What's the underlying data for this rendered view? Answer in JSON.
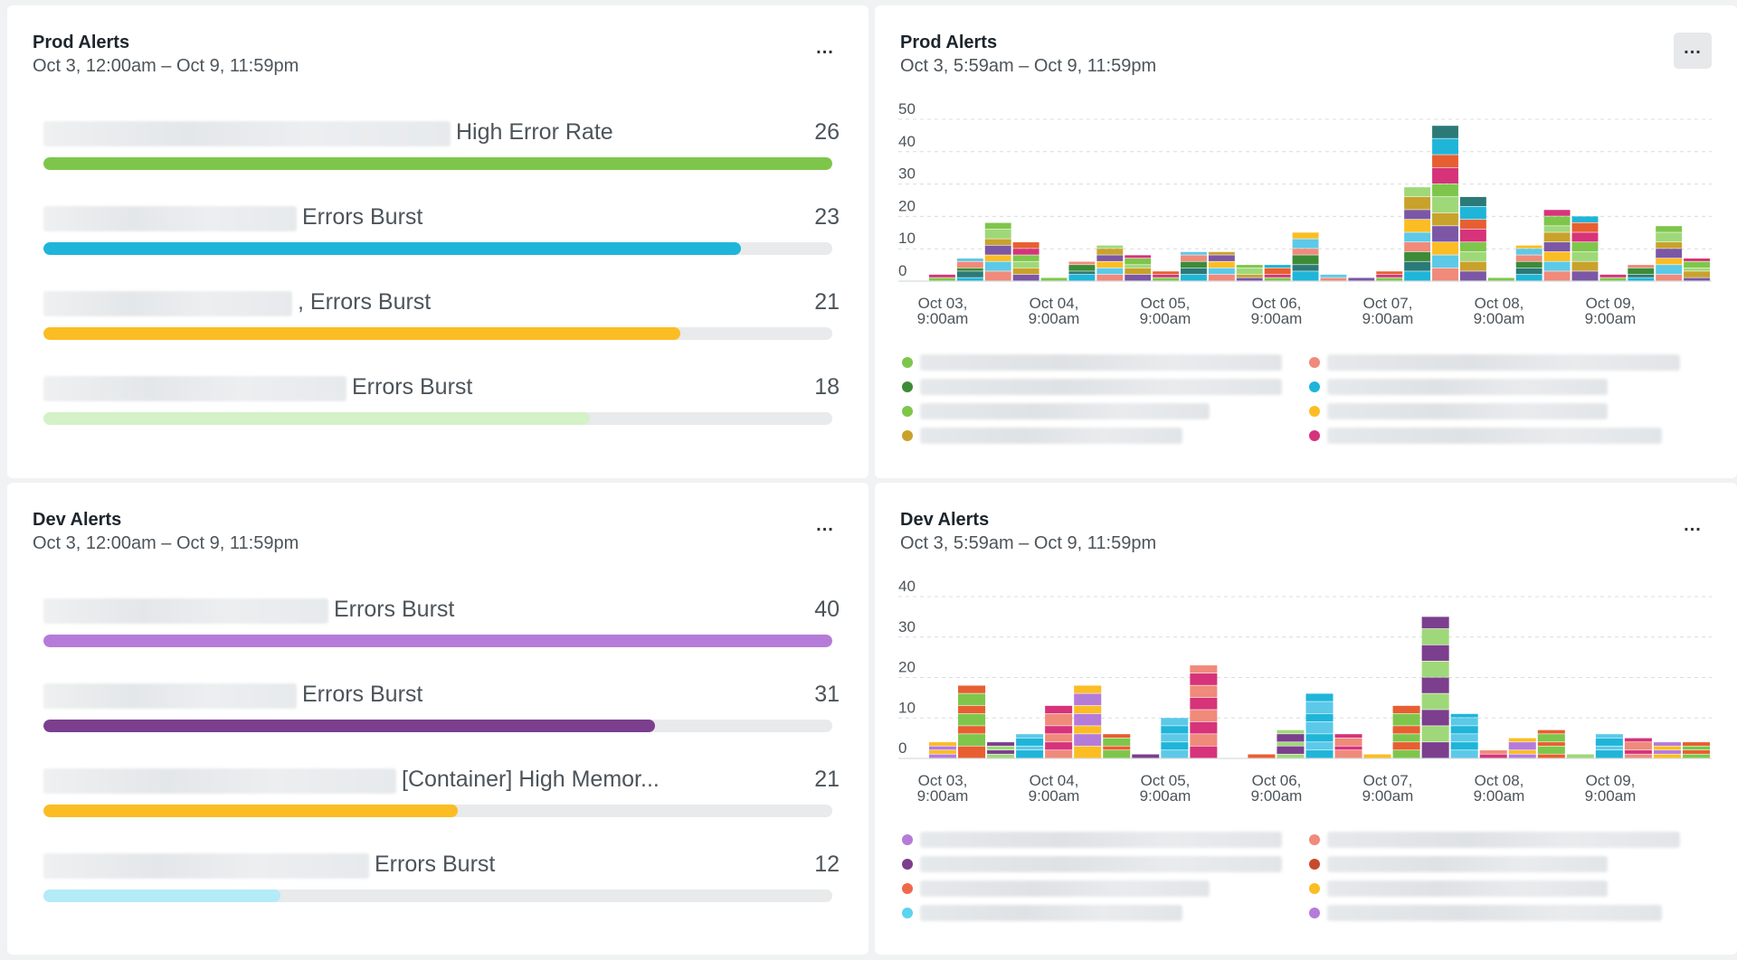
{
  "panels": [
    {
      "title": "Prod Alerts",
      "range": "Oct 3, 12:00am – Oct 9, 11:59pm",
      "more_label": "...",
      "rows": [
        {
          "label": "High Error Rate",
          "count": "26",
          "value": 26,
          "max": 26,
          "color": "#7ec64b",
          "name_width": 450
        },
        {
          "label": "Errors Burst",
          "count": "23",
          "value": 23,
          "max": 26,
          "color": "#1fb5d9",
          "name_width": 280
        },
        {
          "label": ", Errors Burst",
          "count": "21",
          "value": 21,
          "max": 26,
          "color": "#fbbd23",
          "name_width": 275
        },
        {
          "label": "Errors Burst",
          "count": "18",
          "value": 18,
          "max": 26,
          "color": "#d4f1c8",
          "name_width": 335
        }
      ]
    },
    {
      "title": "Prod Alerts",
      "range": "Oct 3, 5:59am – Oct 9, 11:59pm",
      "more_label": "...",
      "chart_data": {
        "type": "bar",
        "stacked": true,
        "y_ticks": [
          "50",
          "40",
          "30",
          "20",
          "10",
          "0"
        ],
        "ylim": [
          0,
          50
        ],
        "x_ticks": [
          {
            "l1": "Oct 03,",
            "l2": "9:00am"
          },
          {
            "l1": "Oct 04,",
            "l2": "9:00am"
          },
          {
            "l1": "Oct 05,",
            "l2": "9:00am"
          },
          {
            "l1": "Oct 06,",
            "l2": "9:00am"
          },
          {
            "l1": "Oct 07,",
            "l2": "9:00am"
          },
          {
            "l1": "Oct 08,",
            "l2": "9:00am"
          },
          {
            "l1": "Oct 09,",
            "l2": "9:00am"
          }
        ],
        "totals": [
          2,
          7,
          18,
          12,
          1,
          6,
          11,
          8,
          3,
          9,
          9,
          5,
          5,
          15,
          2,
          1,
          3,
          29,
          48,
          26,
          1,
          11,
          22,
          20,
          2,
          5,
          17,
          7
        ],
        "palette": [
          "#7ec64b",
          "#3d8b37",
          "#c9a22b",
          "#1fb5d9",
          "#fbbd23",
          "#d6337a",
          "#f08a7a",
          "#9fd879",
          "#2b7a78",
          "#7b57a6",
          "#e75f30",
          "#5cc9e8"
        ],
        "legend": [
          {
            "color": "#7ec64b"
          },
          {
            "color": "#f08a7a"
          },
          {
            "color": "#3d8b37"
          },
          {
            "color": "#1fb5d9"
          },
          {
            "color": "#7ec64b"
          },
          {
            "color": "#fbbd23"
          },
          {
            "color": "#c9a22b"
          },
          {
            "color": "#d6337a"
          }
        ]
      }
    },
    {
      "title": "Dev Alerts",
      "range": "Oct 3, 12:00am – Oct 9, 11:59pm",
      "more_label": "...",
      "rows": [
        {
          "label": "Errors Burst",
          "count": "40",
          "value": 40,
          "max": 40,
          "color": "#b57bd9",
          "name_width": 315
        },
        {
          "label": "Errors Burst",
          "count": "31",
          "value": 31,
          "max": 40,
          "color": "#7b3f8d",
          "name_width": 280
        },
        {
          "label": "[Container] High Memor...",
          "count": "21",
          "value": 21,
          "max": 40,
          "color": "#fbbd23",
          "name_width": 390
        },
        {
          "label": "Errors Burst",
          "count": "12",
          "value": 12,
          "max": 40,
          "color": "#b3ebf7",
          "name_width": 360
        }
      ]
    },
    {
      "title": "Dev Alerts",
      "range": "Oct 3, 5:59am – Oct 9, 11:59pm",
      "more_label": "...",
      "chart_data": {
        "type": "bar",
        "stacked": true,
        "y_ticks": [
          "40",
          "30",
          "20",
          "10",
          "0"
        ],
        "ylim": [
          0,
          40
        ],
        "x_ticks": [
          {
            "l1": "Oct 03,",
            "l2": "9:00am"
          },
          {
            "l1": "Oct 04,",
            "l2": "9:00am"
          },
          {
            "l1": "Oct 05,",
            "l2": "9:00am"
          },
          {
            "l1": "Oct 06,",
            "l2": "9:00am"
          },
          {
            "l1": "Oct 07,",
            "l2": "9:00am"
          },
          {
            "l1": "Oct 08,",
            "l2": "9:00am"
          },
          {
            "l1": "Oct 09,",
            "l2": "9:00am"
          }
        ],
        "totals": [
          4,
          18,
          4,
          6,
          13,
          18,
          6,
          1,
          10,
          23,
          0,
          1,
          7,
          16,
          6,
          1,
          13,
          35,
          11,
          2,
          5,
          7,
          1,
          6,
          5,
          4,
          4
        ],
        "palette": [
          "#b57bd9",
          "#7b3f8d",
          "#f08a7a",
          "#e75f30",
          "#5cc9e8",
          "#fbbd23",
          "#9fd879",
          "#d6337a",
          "#7ec64b",
          "#1fb5d9"
        ],
        "legend": [
          {
            "color": "#b57bd9"
          },
          {
            "color": "#f08a7a"
          },
          {
            "color": "#7b3f8d"
          },
          {
            "color": "#c84a2b"
          },
          {
            "color": "#f06a4a"
          },
          {
            "color": "#fbbd23"
          },
          {
            "color": "#5cd3ef"
          },
          {
            "color": "#b57bd9"
          }
        ]
      }
    }
  ]
}
